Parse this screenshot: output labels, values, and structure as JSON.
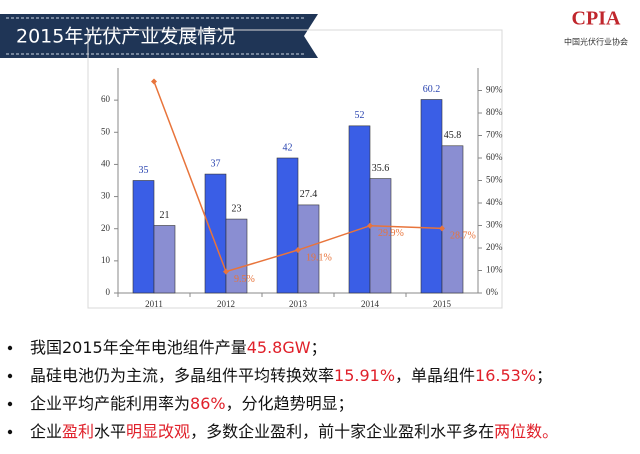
{
  "header": {
    "title": "2015年光伏产业发展情况",
    "logo": "CPIA",
    "logo_subtitle": "中国光伏行业协会"
  },
  "chart_data": {
    "type": "bar_line",
    "categories": [
      "2011",
      "2012",
      "2013",
      "2014",
      "2015"
    ],
    "series": [
      {
        "type": "bar",
        "color": "#3a5ee6",
        "label_color": "#2a44b0",
        "values": [
          35,
          37,
          42,
          52,
          60.2
        ]
      },
      {
        "type": "bar",
        "color": "#8a8ed2",
        "label_color": "#222222",
        "values": [
          21,
          23,
          27.4,
          35.6,
          45.8
        ]
      },
      {
        "type": "line",
        "axis": "y2",
        "color": "#e8743b",
        "values": [
          94,
          9.5,
          19.1,
          29.9,
          28.7
        ],
        "value_labels": [
          null,
          "9.5%",
          "19.1%",
          "29.9%",
          "28.7%"
        ]
      }
    ],
    "ylim": [
      0,
      70
    ],
    "yticks": [
      0,
      10,
      20,
      30,
      40,
      50,
      60
    ],
    "y2lim": [
      0,
      100
    ],
    "y2ticks": [
      {
        "value": 0,
        "label": "0%"
      },
      {
        "value": 10,
        "label": "10%"
      },
      {
        "value": 20,
        "label": "20%"
      },
      {
        "value": 30,
        "label": "30%"
      },
      {
        "value": 40,
        "label": "40%"
      },
      {
        "value": 50,
        "label": "50%"
      },
      {
        "value": 60,
        "label": "60%"
      },
      {
        "value": 70,
        "label": "70%"
      },
      {
        "value": 80,
        "label": "80%"
      },
      {
        "value": 90,
        "label": "90%"
      }
    ],
    "data_labels": true
  },
  "bullets": [
    [
      {
        "text": "我国2015年全年电池组件产量"
      },
      {
        "text": "45.8GW",
        "color": "#e0202a"
      },
      {
        "text": "；"
      }
    ],
    [
      {
        "text": "晶硅电池仍为主流，多晶组件平均转换效率"
      },
      {
        "text": "15.91%",
        "color": "#e0202a"
      },
      {
        "text": "，单晶组件"
      },
      {
        "text": "16.53%",
        "color": "#e0202a"
      },
      {
        "text": "；"
      }
    ],
    [
      {
        "text": "企业平均产能利用率为"
      },
      {
        "text": "86%",
        "color": "#e0202a"
      },
      {
        "text": "，分化趋势明显；"
      }
    ],
    [
      {
        "text": "企业"
      },
      {
        "text": "盈利",
        "color": "#e0202a"
      },
      {
        "text": "水平"
      },
      {
        "text": "明显改观",
        "color": "#e0202a"
      },
      {
        "text": "，多数企业盈利，前十家企业盈利水平多在"
      },
      {
        "text": "两位数。",
        "color": "#e0202a"
      }
    ]
  ]
}
